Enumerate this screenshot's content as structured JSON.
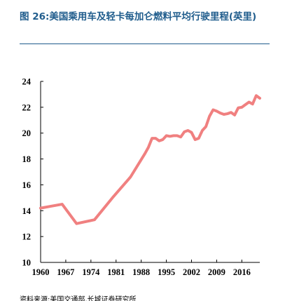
{
  "header": {
    "title": "图 26:美国乘用车及轻卡每加仑燃料平均行驶里程(英里)"
  },
  "footer": {
    "source": "资料来源:美国交通部,长城证券研究所"
  },
  "colors": {
    "title": "#1f5c8c",
    "line": "#f08080",
    "axis": "#000000"
  },
  "chart_data": {
    "type": "line",
    "title": "图 26:美国乘用车及轻卡每加仑燃料平均行驶里程(英里)",
    "xlabel": "",
    "ylabel": "",
    "xlim": [
      1960,
      2021
    ],
    "ylim": [
      10,
      24
    ],
    "x_ticks": [
      1960,
      1967,
      1974,
      1981,
      1988,
      1995,
      2002,
      2009,
      2016
    ],
    "y_ticks": [
      10,
      12,
      14,
      16,
      18,
      20,
      22,
      24
    ],
    "grid": false,
    "legend": "none",
    "series": [
      {
        "x": [
          1960,
          1963,
          1966,
          1970,
          1975,
          1980,
          1985,
          1989,
          1990,
          1991,
          1992,
          1993,
          1994,
          1995,
          1996,
          1997,
          1998,
          1999,
          2000,
          2001,
          2002,
          2003,
          2004,
          2005,
          2006,
          2007,
          2008,
          2009,
          2010,
          2011,
          2012,
          2013,
          2014,
          2015,
          2016,
          2017,
          2018,
          2019,
          2020,
          2021
        ],
        "values": [
          14.2,
          14.35,
          14.5,
          13.0,
          13.3,
          15.0,
          16.6,
          18.4,
          18.9,
          19.6,
          19.6,
          19.4,
          19.5,
          19.8,
          19.75,
          19.8,
          19.8,
          19.7,
          20.1,
          20.2,
          20.05,
          19.5,
          19.6,
          20.2,
          20.5,
          21.3,
          21.8,
          21.7,
          21.55,
          21.45,
          21.5,
          21.6,
          21.4,
          21.95,
          22.0,
          22.2,
          22.4,
          22.25,
          22.9,
          22.7
        ]
      }
    ]
  }
}
